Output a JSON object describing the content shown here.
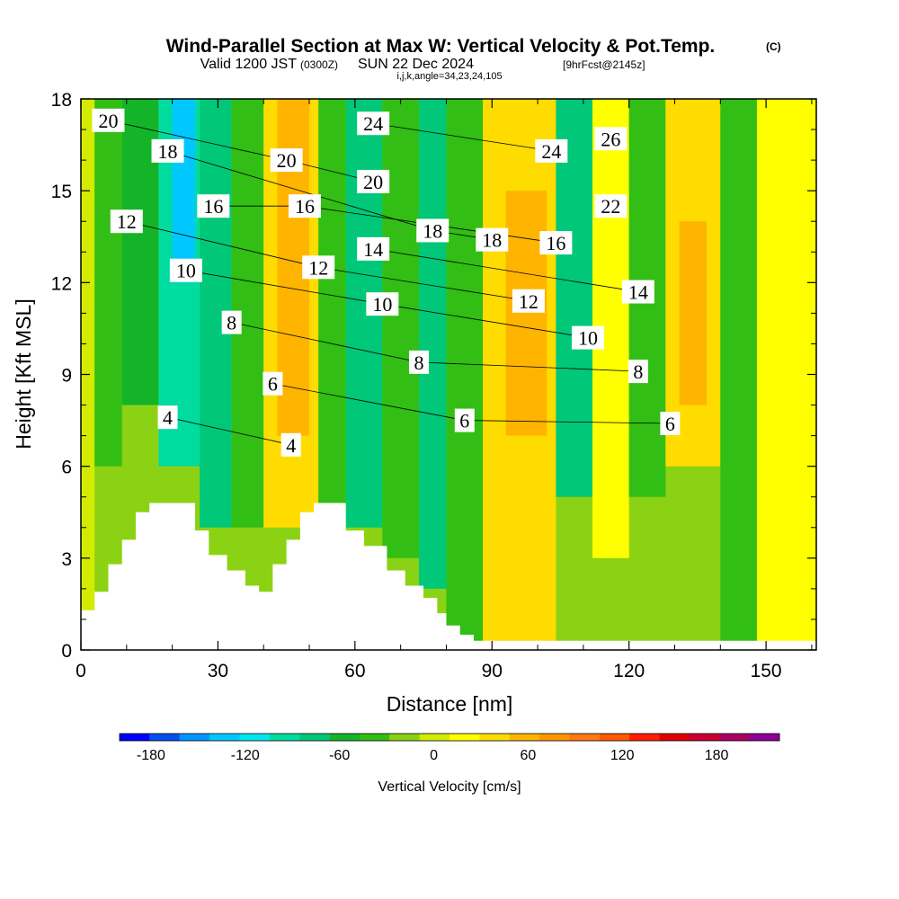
{
  "chart_data": {
    "type": "heatmap",
    "title": "Wind-Parallel Section at Max W: Vertical Velocity & Pot.Temp.",
    "title_mark": "(C)",
    "subtitle": {
      "valid": "Valid 1200 JST",
      "utc": "(0300Z)",
      "date": "SUN 22 Dec 2024",
      "forecast": "[9hrFcst@2145z]"
    },
    "indices": "i,j,k,angle=34,23,24,105",
    "xlabel": "Distance [nm]",
    "ylabel": "Height [Kft MSL]",
    "xlim": [
      0,
      161
    ],
    "ylim": [
      0,
      18
    ],
    "x_ticks": [
      "0",
      "30",
      "60",
      "90",
      "120",
      "150"
    ],
    "y_ticks": [
      "0",
      "3",
      "6",
      "9",
      "12",
      "15",
      "18"
    ],
    "colorbar": {
      "label": "Vertical Velocity [cm/s]",
      "tick_labels": [
        "-180",
        "-120",
        "-60",
        "0",
        "60",
        "120",
        "180"
      ],
      "min": -200,
      "max": 220,
      "step": 20,
      "colors": [
        "#0000ff",
        "#0050f0",
        "#0096ff",
        "#00c8ff",
        "#00e6f0",
        "#00dca0",
        "#00c878",
        "#14b428",
        "#32be14",
        "#8cd214",
        "#d2eb00",
        "#ffff00",
        "#ffdc00",
        "#ffb400",
        "#ff9600",
        "#ff7814",
        "#ff5a00",
        "#ff1e00",
        "#e10000",
        "#c80032",
        "#aa0064",
        "#8c0096"
      ]
    },
    "regions": [
      {
        "x": 0,
        "x_end": 3,
        "y": 0,
        "y_end": 18,
        "value": 15
      },
      {
        "x": 3,
        "x_end": 9,
        "y": 6,
        "y_end": 18,
        "value": -30
      },
      {
        "x": 9,
        "x_end": 17,
        "y": 8,
        "y_end": 18,
        "value": -45
      },
      {
        "x": 17,
        "x_end": 26,
        "y": 6,
        "y_end": 18,
        "value": -100
      },
      {
        "x": 20,
        "x_end": 25,
        "y": 12,
        "y_end": 18,
        "value": -130
      },
      {
        "x": 26,
        "x_end": 33,
        "y": 4,
        "y_end": 18,
        "value": -75
      },
      {
        "x": 33,
        "x_end": 40,
        "y": 4,
        "y_end": 18,
        "value": -30
      },
      {
        "x": 40,
        "x_end": 52,
        "y": 4,
        "y_end": 18,
        "value": 55
      },
      {
        "x": 43,
        "x_end": 50,
        "y": 7,
        "y_end": 18,
        "value": 75
      },
      {
        "x": 52,
        "x_end": 58,
        "y": 4,
        "y_end": 18,
        "value": -30
      },
      {
        "x": 58,
        "x_end": 66,
        "y": 4,
        "y_end": 18,
        "value": -70
      },
      {
        "x": 66,
        "x_end": 74,
        "y": 3,
        "y_end": 18,
        "value": -40
      },
      {
        "x": 74,
        "x_end": 80,
        "y": 2,
        "y_end": 18,
        "value": -80
      },
      {
        "x": 80,
        "x_end": 88,
        "y": 0,
        "y_end": 18,
        "value": -30
      },
      {
        "x": 88,
        "x_end": 104,
        "y": 0,
        "y_end": 18,
        "value": 45
      },
      {
        "x": 93,
        "x_end": 102,
        "y": 7,
        "y_end": 15,
        "value": 70
      },
      {
        "x": 104,
        "x_end": 112,
        "y": 5,
        "y_end": 18,
        "value": -80
      },
      {
        "x": 112,
        "x_end": 120,
        "y": 3,
        "y_end": 18,
        "value": 25
      },
      {
        "x": 120,
        "x_end": 128,
        "y": 5,
        "y_end": 18,
        "value": -40
      },
      {
        "x": 128,
        "x_end": 140,
        "y": 6,
        "y_end": 18,
        "value": 50
      },
      {
        "x": 131,
        "x_end": 137,
        "y": 8,
        "y_end": 14,
        "value": 70
      },
      {
        "x": 140,
        "x_end": 148,
        "y": 0,
        "y_end": 18,
        "value": -40
      },
      {
        "x": 148,
        "x_end": 161,
        "y": 0,
        "y_end": 18,
        "value": 25
      }
    ],
    "terrain": [
      [
        0,
        1.3
      ],
      [
        3,
        1.3
      ],
      [
        3,
        1.9
      ],
      [
        6,
        1.9
      ],
      [
        6,
        2.8
      ],
      [
        9,
        2.8
      ],
      [
        9,
        3.6
      ],
      [
        12,
        3.6
      ],
      [
        12,
        4.5
      ],
      [
        15,
        4.5
      ],
      [
        15,
        4.8
      ],
      [
        25,
        4.8
      ],
      [
        25,
        3.9
      ],
      [
        28,
        3.9
      ],
      [
        28,
        3.1
      ],
      [
        32,
        3.1
      ],
      [
        32,
        2.6
      ],
      [
        36,
        2.6
      ],
      [
        36,
        2.1
      ],
      [
        39,
        2.1
      ],
      [
        39,
        1.9
      ],
      [
        42,
        1.9
      ],
      [
        42,
        2.8
      ],
      [
        45,
        2.8
      ],
      [
        45,
        3.6
      ],
      [
        48,
        3.6
      ],
      [
        48,
        4.5
      ],
      [
        51,
        4.5
      ],
      [
        51,
        4.8
      ],
      [
        58,
        4.8
      ],
      [
        58,
        3.9
      ],
      [
        62,
        3.9
      ],
      [
        62,
        3.4
      ],
      [
        67,
        3.4
      ],
      [
        67,
        2.6
      ],
      [
        71,
        2.6
      ],
      [
        71,
        2.1
      ],
      [
        75,
        2.1
      ],
      [
        75,
        1.7
      ],
      [
        78,
        1.7
      ],
      [
        78,
        1.2
      ],
      [
        80,
        1.2
      ],
      [
        80,
        0.8
      ],
      [
        83,
        0.8
      ],
      [
        83,
        0.5
      ],
      [
        86,
        0.5
      ],
      [
        86,
        0.3
      ],
      [
        161,
        0.3
      ]
    ],
    "contour_labels": [
      {
        "text": "20",
        "x": 6,
        "y": 17.3
      },
      {
        "text": "18",
        "x": 19,
        "y": 16.3
      },
      {
        "text": "12",
        "x": 10,
        "y": 14.0
      },
      {
        "text": "16",
        "x": 29,
        "y": 14.5
      },
      {
        "text": "10",
        "x": 23,
        "y": 12.4
      },
      {
        "text": "8",
        "x": 33,
        "y": 10.7
      },
      {
        "text": "6",
        "x": 42,
        "y": 8.7
      },
      {
        "text": "4",
        "x": 19,
        "y": 7.6
      },
      {
        "text": "4",
        "x": 46,
        "y": 6.7
      },
      {
        "text": "20",
        "x": 45,
        "y": 16.0
      },
      {
        "text": "16",
        "x": 49,
        "y": 14.5
      },
      {
        "text": "12",
        "x": 52,
        "y": 12.5
      },
      {
        "text": "24",
        "x": 64,
        "y": 17.2
      },
      {
        "text": "20",
        "x": 64,
        "y": 15.3
      },
      {
        "text": "14",
        "x": 64,
        "y": 13.1
      },
      {
        "text": "10",
        "x": 66,
        "y": 11.3
      },
      {
        "text": "8",
        "x": 74,
        "y": 9.4
      },
      {
        "text": "6",
        "x": 84,
        "y": 7.5
      },
      {
        "text": "18",
        "x": 77,
        "y": 13.7
      },
      {
        "text": "18",
        "x": 90,
        "y": 13.4
      },
      {
        "text": "12",
        "x": 98,
        "y": 11.4
      },
      {
        "text": "24",
        "x": 103,
        "y": 16.3
      },
      {
        "text": "16",
        "x": 104,
        "y": 13.3
      },
      {
        "text": "10",
        "x": 111,
        "y": 10.2
      },
      {
        "text": "26",
        "x": 116,
        "y": 16.7
      },
      {
        "text": "22",
        "x": 116,
        "y": 14.5
      },
      {
        "text": "14",
        "x": 122,
        "y": 11.7
      },
      {
        "text": "8",
        "x": 122,
        "y": 9.1
      },
      {
        "text": "6",
        "x": 129,
        "y": 7.4
      }
    ]
  }
}
